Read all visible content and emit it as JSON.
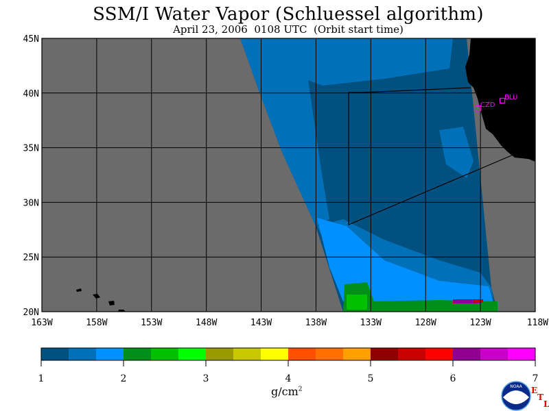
{
  "header": {
    "title": "SSM/I Water Vapor (Schluessel algorithm)",
    "subtitle": "April 23, 2006  0108 UTC  (Orbit start time)"
  },
  "map": {
    "lat_labels": [
      "45N",
      "40N",
      "35N",
      "30N",
      "25N",
      "20N"
    ],
    "lat_values": [
      45,
      40,
      35,
      30,
      25,
      20
    ],
    "lon_labels": [
      "163W",
      "158W",
      "153W",
      "148W",
      "143W",
      "138W",
      "133W",
      "128W",
      "123W",
      "118W"
    ],
    "lon_values": [
      -163,
      -158,
      -153,
      -148,
      -143,
      -138,
      -133,
      -128,
      -123,
      -118
    ],
    "extent": {
      "lon": [
        -163,
        -118
      ],
      "lat": [
        20,
        45
      ]
    },
    "stations": [
      {
        "id": "CZD",
        "lat": 38.6,
        "lon": -123.2
      },
      {
        "id": "BLU",
        "lat": 39.3,
        "lon": -121.0
      }
    ],
    "colors": {
      "no_data": "#6b6b6b",
      "land": "#000000",
      "station": "#ff00ff",
      "grid": "#000000"
    }
  },
  "colorbar": {
    "unit": "g/cm",
    "unit_superscript": "2",
    "labels": [
      "1",
      "2",
      "3",
      "4",
      "5",
      "6",
      "7"
    ],
    "range": [
      1,
      7
    ],
    "colors": [
      "#005080",
      "#0070b8",
      "#0090ff",
      "#00901a",
      "#00c000",
      "#00ff00",
      "#9a9a00",
      "#c8c800",
      "#ffff00",
      "#ff5000",
      "#ff7000",
      "#ffa000",
      "#900000",
      "#c80000",
      "#ff0000",
      "#900090",
      "#c800c8",
      "#ff00ff"
    ]
  },
  "logos": {
    "agency": "NOAA",
    "lab_letters": [
      "E",
      "T",
      "L"
    ]
  }
}
